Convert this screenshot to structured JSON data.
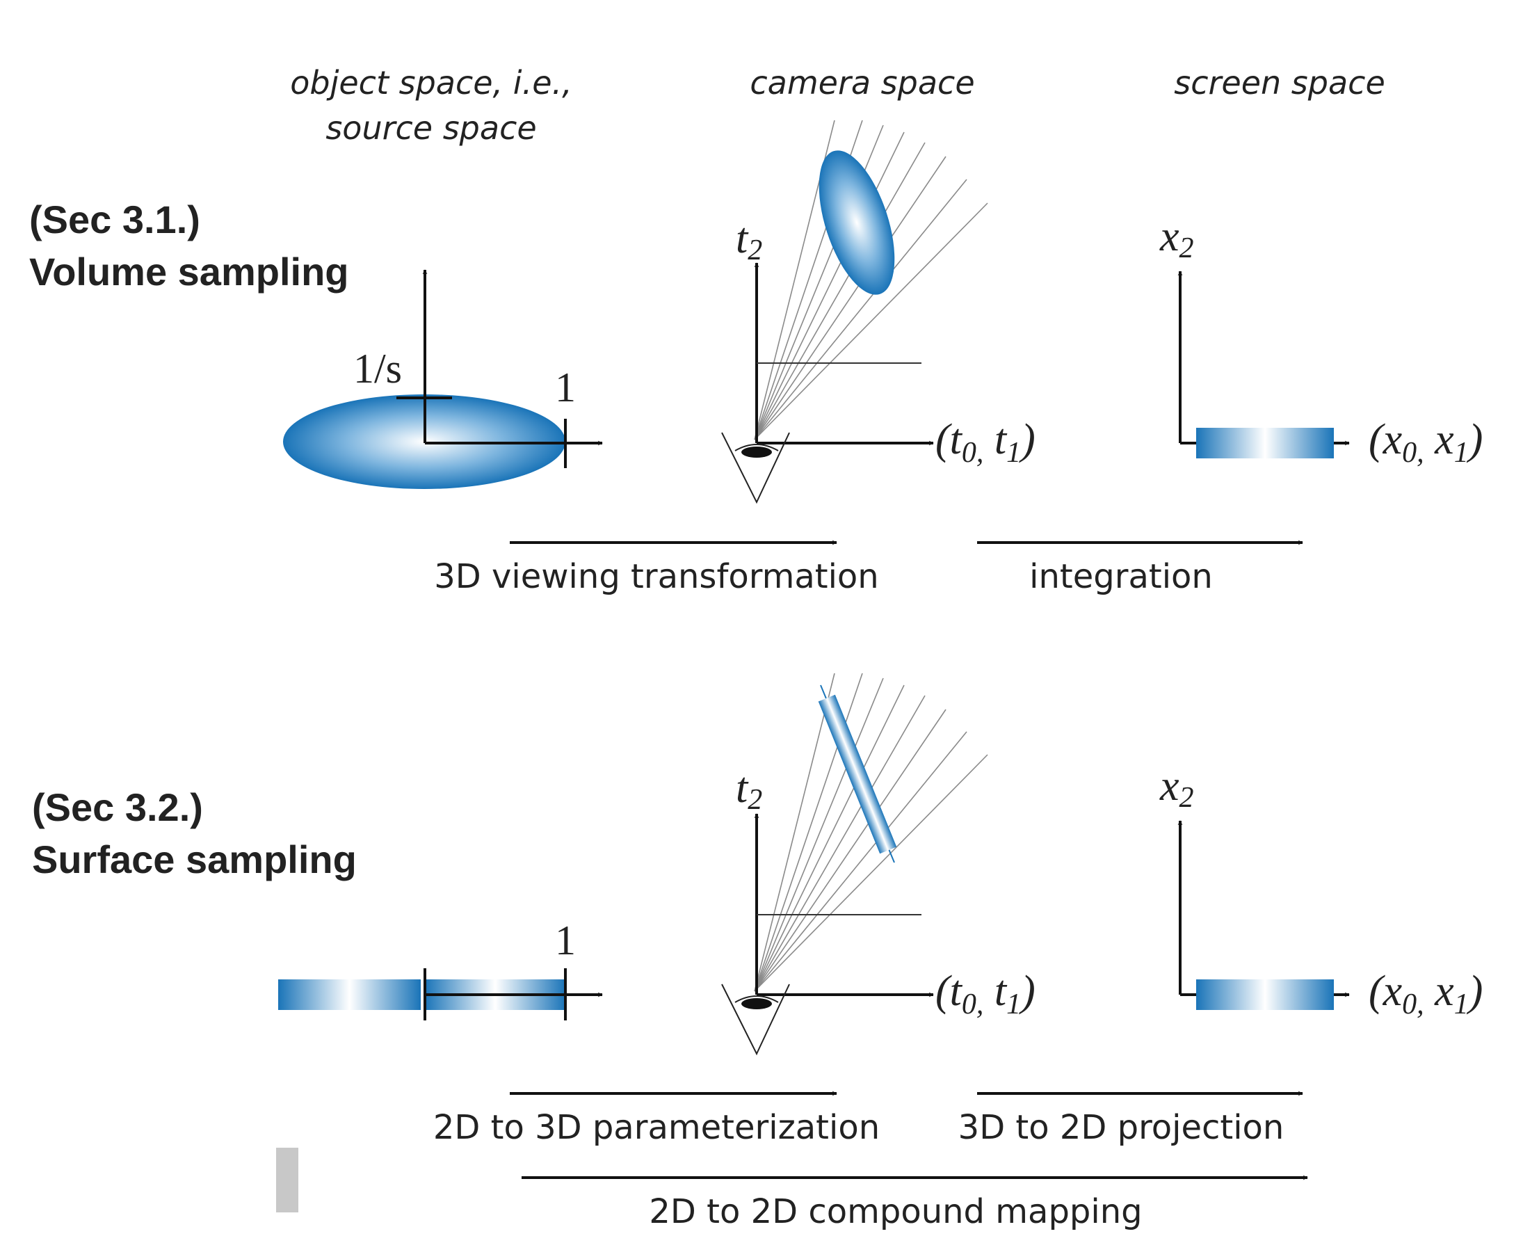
{
  "headers": {
    "object_space": [
      "object space, i.e.,",
      "source space"
    ],
    "camera_space": "camera space",
    "screen_space": "screen space"
  },
  "sections": {
    "volume": {
      "ref": "(Sec 3.1.)",
      "title": "Volume sampling"
    },
    "surface": {
      "ref": "(Sec 3.2.)",
      "title": "Surface sampling"
    }
  },
  "tick_labels": {
    "inv_s": "1/s",
    "one": "1"
  },
  "axis_labels": {
    "t_vertical": "t",
    "t_vertical_sub": "2",
    "x_vertical": "x",
    "x_vertical_sub": "2",
    "t_horizontal": {
      "open": "(t",
      "sub1": "0,",
      "mid": " t",
      "sub2": "1",
      "close": ")"
    },
    "x_horizontal": {
      "open": "(x",
      "sub1": "0,",
      "mid": " x",
      "sub2": "1",
      "close": ")"
    }
  },
  "transforms": {
    "viewing": "3D viewing transformation",
    "integration": "integration",
    "parameterization": "2D to 3D parameterization",
    "projection": "3D to 2D projection",
    "compound": "2D to 2D compound mapping"
  },
  "colors": {
    "splat_blue": "#1a74b8",
    "splat_light": "#ffffff",
    "axis": "#111111",
    "ray": "#8a8a8a"
  }
}
